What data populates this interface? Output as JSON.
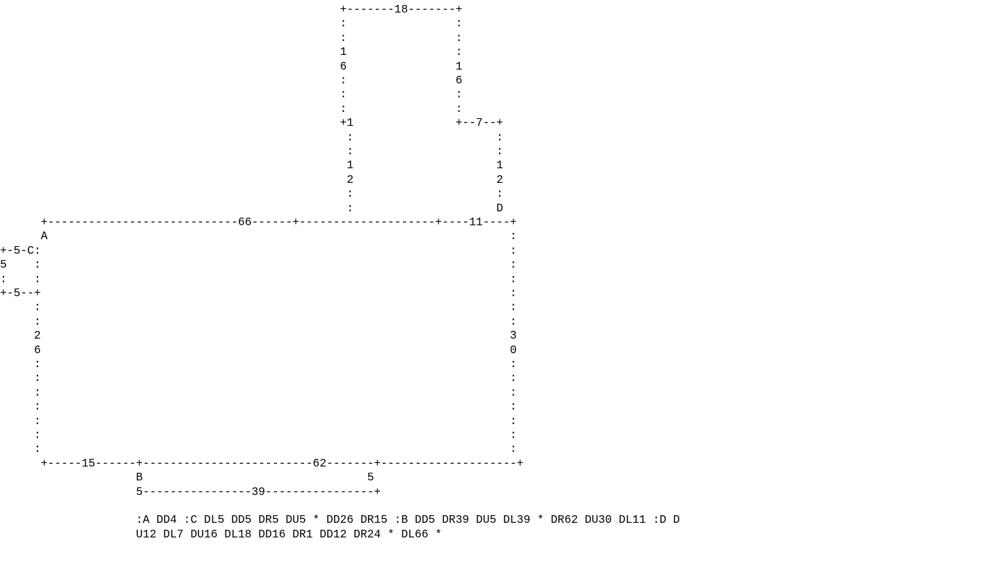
{
  "diagram": {
    "lines": [
      "                                                  +-------18-------+",
      "                                                  :                :",
      "                                                  :                :",
      "                                                  1                :",
      "                                                  6                1",
      "                                                  :                6",
      "                                                  :                :",
      "                                                  :                :",
      "                                                  +1               +--7--+",
      "                                                   :                     :",
      "                                                   :                     :",
      "                                                   1                     1",
      "                                                   2                     2",
      "                                                   :                     :",
      "                                                   :                     D",
      "      +----------------------------66------+--------------------+----11----+",
      "      A                                                                    :",
      "+-5-C:                                                                     :",
      "5    :                                                                     :",
      ":    :                                                                     :",
      "+-5--+                                                                     :",
      "     :                                                                     :",
      "     :                                                                     :",
      "     2                                                                     3",
      "     6                                                                     0",
      "     :                                                                     :",
      "     :                                                                     :",
      "     :                                                                     :",
      "     :                                                                     :",
      "     :                                                                     :",
      "     :                                                                     :",
      "     :                                                                     :",
      "      +-----15------+-------------------------62-------+--------------------+",
      "                    B                                 5",
      "                    5----------------39----------------+",
      "",
      "                    :A DD4 :C DL5 DD5 DR5 DU5 * DD26 DR15 :B DD5 DR39 DU5 DL39 * DR62 DU30 DL11 :D D",
      "                    U12 DL7 DU16 DL18 DD16 DR1 DD12 DR24 * DL66 *"
    ]
  }
}
